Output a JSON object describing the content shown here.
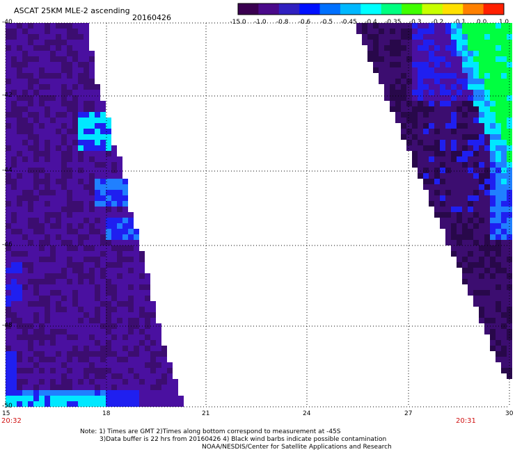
{
  "header": {
    "title": "ASCAT 25KM MLE-2 ascending",
    "date": "20160426"
  },
  "colorbar": {
    "labels": [
      "-15.0",
      "-1.0",
      "-0.8",
      "-0.6",
      "-0.5",
      "-0.45",
      "-0.4",
      "-0.35",
      "-0.3",
      "-0.2",
      "-0.1",
      "0.0",
      "1.0"
    ],
    "colors": [
      "#3a0050",
      "#4a0a8a",
      "#3020c0",
      "#0010ff",
      "#0070ff",
      "#00b8ff",
      "#00ffff",
      "#00ff80",
      "#40ff00",
      "#c8ff00",
      "#ffe000",
      "#ff8000",
      "#ff2000"
    ]
  },
  "map": {
    "lat_labels": [
      "-40",
      "-42",
      "-44",
      "-46",
      "-48",
      "-50"
    ],
    "lon_labels": [
      "15",
      "18",
      "21",
      "24",
      "27",
      "30"
    ],
    "start_time": "20:32",
    "end_time": "20:31",
    "colors": {
      "deep": "#3c0d70",
      "purple": "#4a10a0",
      "blue": "#1f1ff0",
      "lightblue": "#2080ff",
      "cyan": "#00e8ff",
      "green": "#00ff40",
      "dark": "#28084a"
    }
  },
  "notes": {
    "line1": "Note: 1) Times are GMT 2)Times along bottom correspond to measurement at -45S",
    "line2": "3)Data buffer is 22 hrs from 20160426 4) Black wind barbs indicate possible contamination",
    "line3": "NOAA/NESDIS/Center for Satellite Applications and Research"
  }
}
